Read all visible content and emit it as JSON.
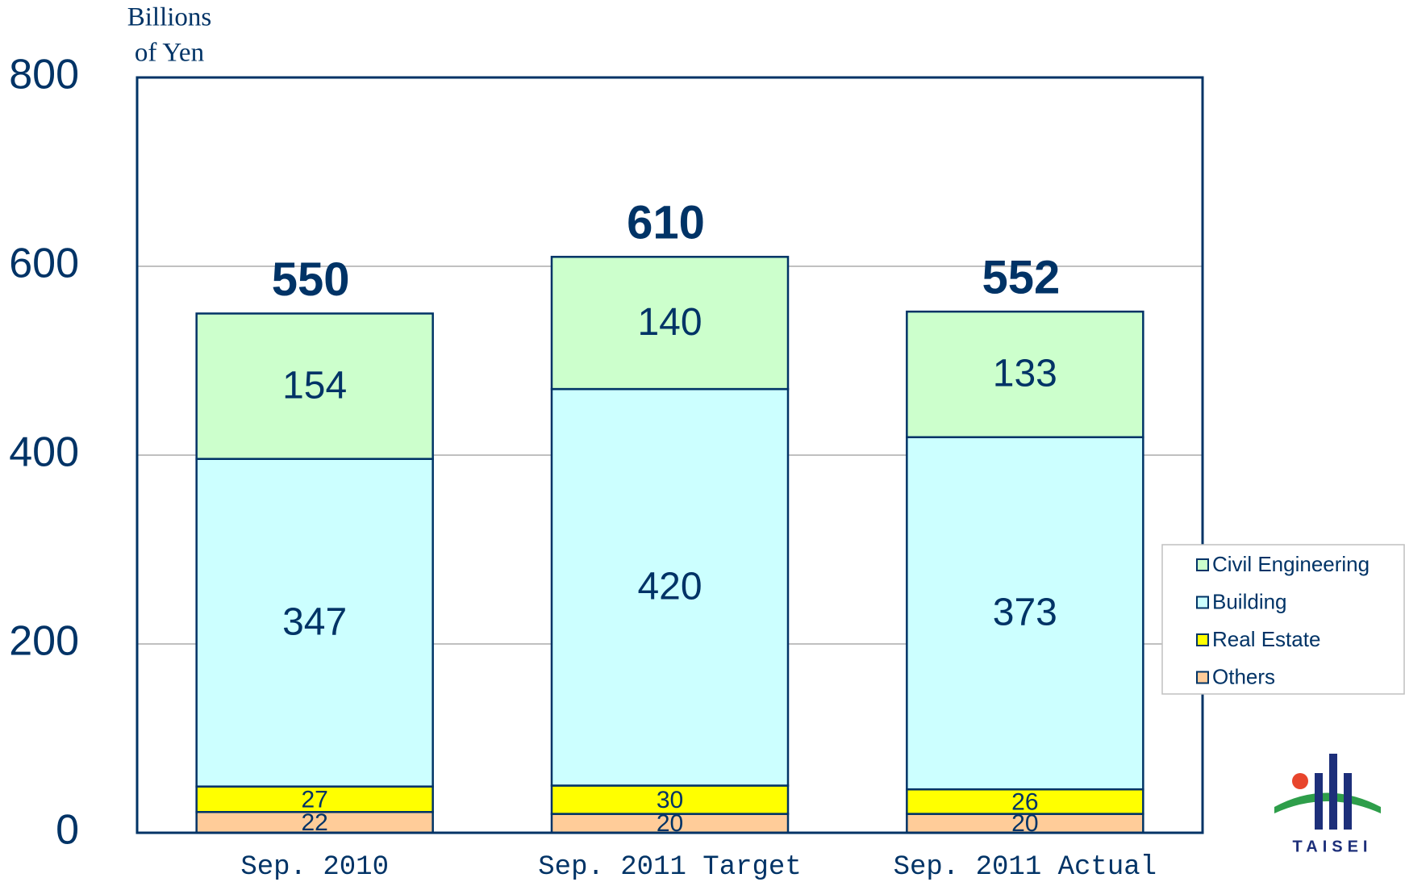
{
  "chart_data": {
    "type": "stacked_bar",
    "y_label_lines": [
      "Billions",
      "of Yen"
    ],
    "categories": [
      "Sep. 2010",
      "Sep. 2011  Target",
      "Sep. 2011  Actual"
    ],
    "series": [
      {
        "name": "Others",
        "color": "#ffcc99",
        "values": [
          22,
          20,
          20
        ]
      },
      {
        "name": "Real Estate",
        "color": "#ffff00",
        "values": [
          27,
          30,
          26
        ]
      },
      {
        "name": "Building",
        "color": "#ccffff",
        "values": [
          347,
          420,
          373
        ]
      },
      {
        "name": "Civil Engineering",
        "color": "#ccffcc",
        "values": [
          154,
          140,
          133
        ]
      }
    ],
    "totals": [
      550,
      610,
      552
    ],
    "ylim": [
      0,
      800
    ],
    "yticks": [
      0,
      200,
      400,
      600,
      800
    ],
    "grid": true,
    "legend": "right",
    "logo_text": "TAISEI"
  }
}
